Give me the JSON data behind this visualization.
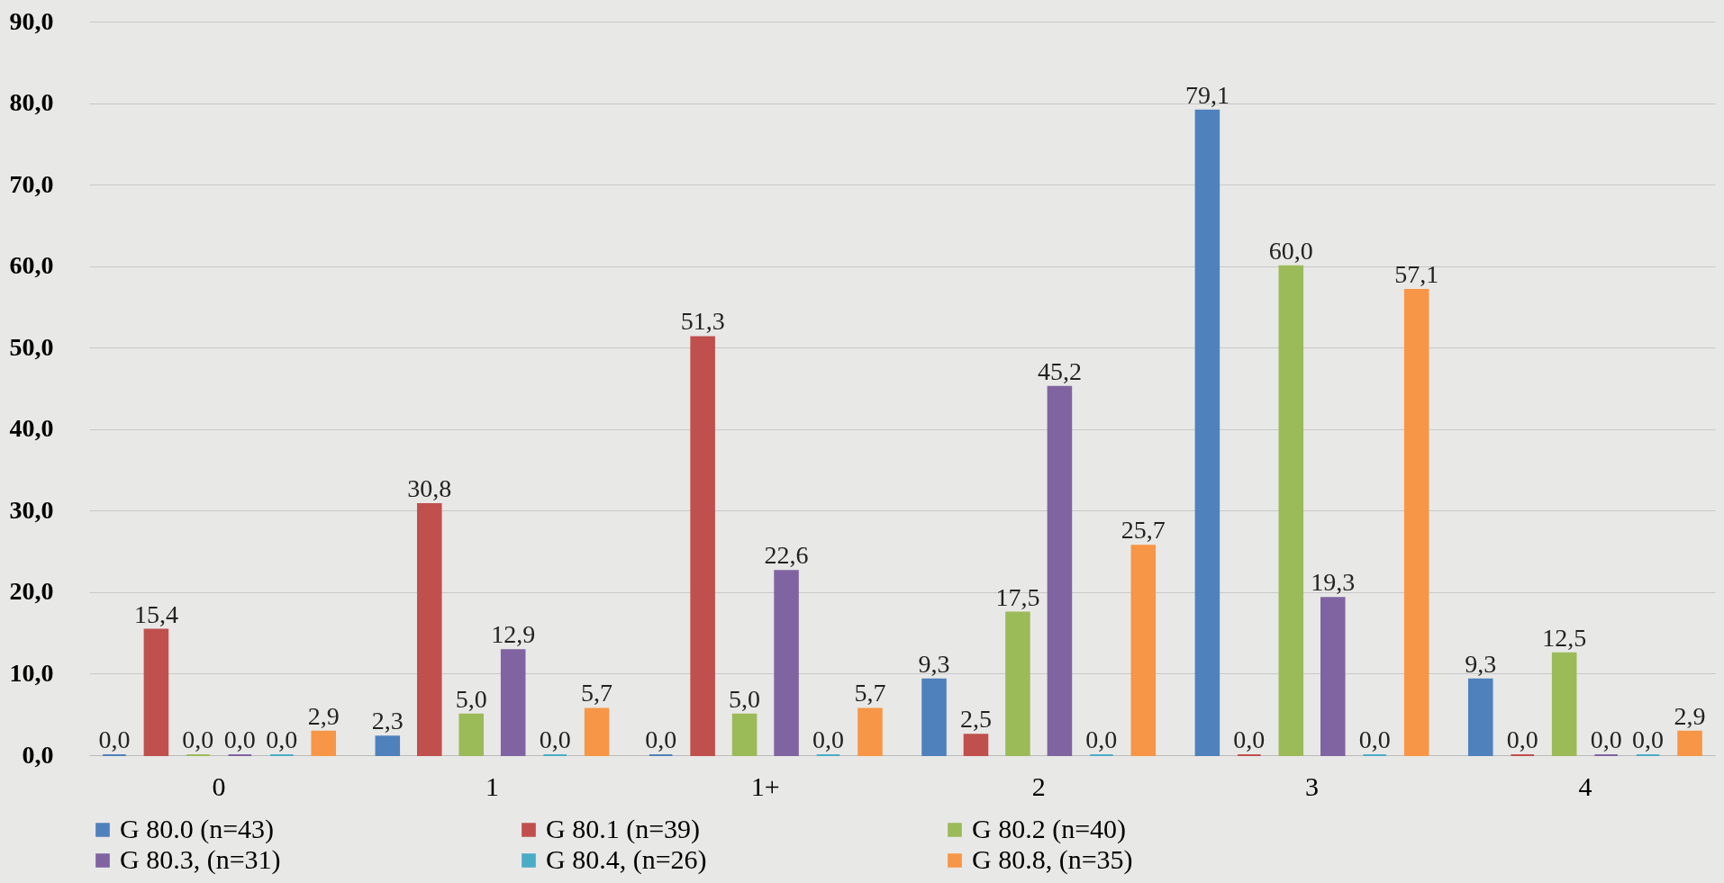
{
  "chart_data": {
    "type": "bar",
    "categories": [
      "0",
      "1",
      "1+",
      "2",
      "3",
      "4"
    ],
    "series": [
      {
        "name": "G 80.0 (n=43)",
        "color": "#4f81bd",
        "values": [
          0.0,
          2.3,
          0.0,
          9.3,
          79.1,
          9.3
        ],
        "value_labels": [
          "0,0",
          "2,3",
          "0,0",
          "9,3",
          "79,1",
          "9,3"
        ]
      },
      {
        "name": "G 80.1 (n=39)",
        "color": "#c0504d",
        "values": [
          15.4,
          30.8,
          51.3,
          2.5,
          0.0,
          0.0
        ],
        "value_labels": [
          "15,4",
          "30,8",
          "51,3",
          "2,5",
          "0,0",
          "0,0"
        ]
      },
      {
        "name": "G 80.2 (n=40)",
        "color": "#9bbb59",
        "values": [
          0.0,
          5.0,
          5.0,
          17.5,
          60.0,
          12.5
        ],
        "value_labels": [
          "0,0",
          "5,0",
          "5,0",
          "17,5",
          "60,0",
          "12,5"
        ]
      },
      {
        "name": "G 80.3, (n=31)",
        "color": "#8064a2",
        "values": [
          0.0,
          12.9,
          22.6,
          45.2,
          19.3,
          0.0
        ],
        "value_labels": [
          "0,0",
          "12,9",
          "22,6",
          "45,2",
          "19,3",
          "0,0"
        ]
      },
      {
        "name": "G 80.4, (n=26)",
        "color": "#4bacc6",
        "values": [
          0.0,
          0.0,
          0.0,
          0.0,
          0.0,
          0.0
        ],
        "value_labels": [
          "0,0",
          "0,0",
          "0,0",
          "0,0",
          "0,0",
          "0,0"
        ]
      },
      {
        "name": "G 80.8, (n=35)",
        "color": "#f79646",
        "values": [
          2.9,
          5.7,
          5.7,
          25.7,
          57.1,
          2.9
        ],
        "value_labels": [
          "2,9",
          "5,7",
          "5,7",
          "25,7",
          "57,1",
          "2,9"
        ]
      }
    ],
    "ylim": [
      0,
      90
    ],
    "yticks": [
      {
        "value": 0,
        "label": "0,0"
      },
      {
        "value": 10,
        "label": "10,0"
      },
      {
        "value": 20,
        "label": "20,0"
      },
      {
        "value": 30,
        "label": "30,0"
      },
      {
        "value": 40,
        "label": "40,0"
      },
      {
        "value": 50,
        "label": "50,0"
      },
      {
        "value": 60,
        "label": "60,0"
      },
      {
        "value": 70,
        "label": "70,0"
      },
      {
        "value": 80,
        "label": "80,0"
      },
      {
        "value": 90,
        "label": "90,0"
      }
    ],
    "grid": "y",
    "legend": "bottom"
  }
}
